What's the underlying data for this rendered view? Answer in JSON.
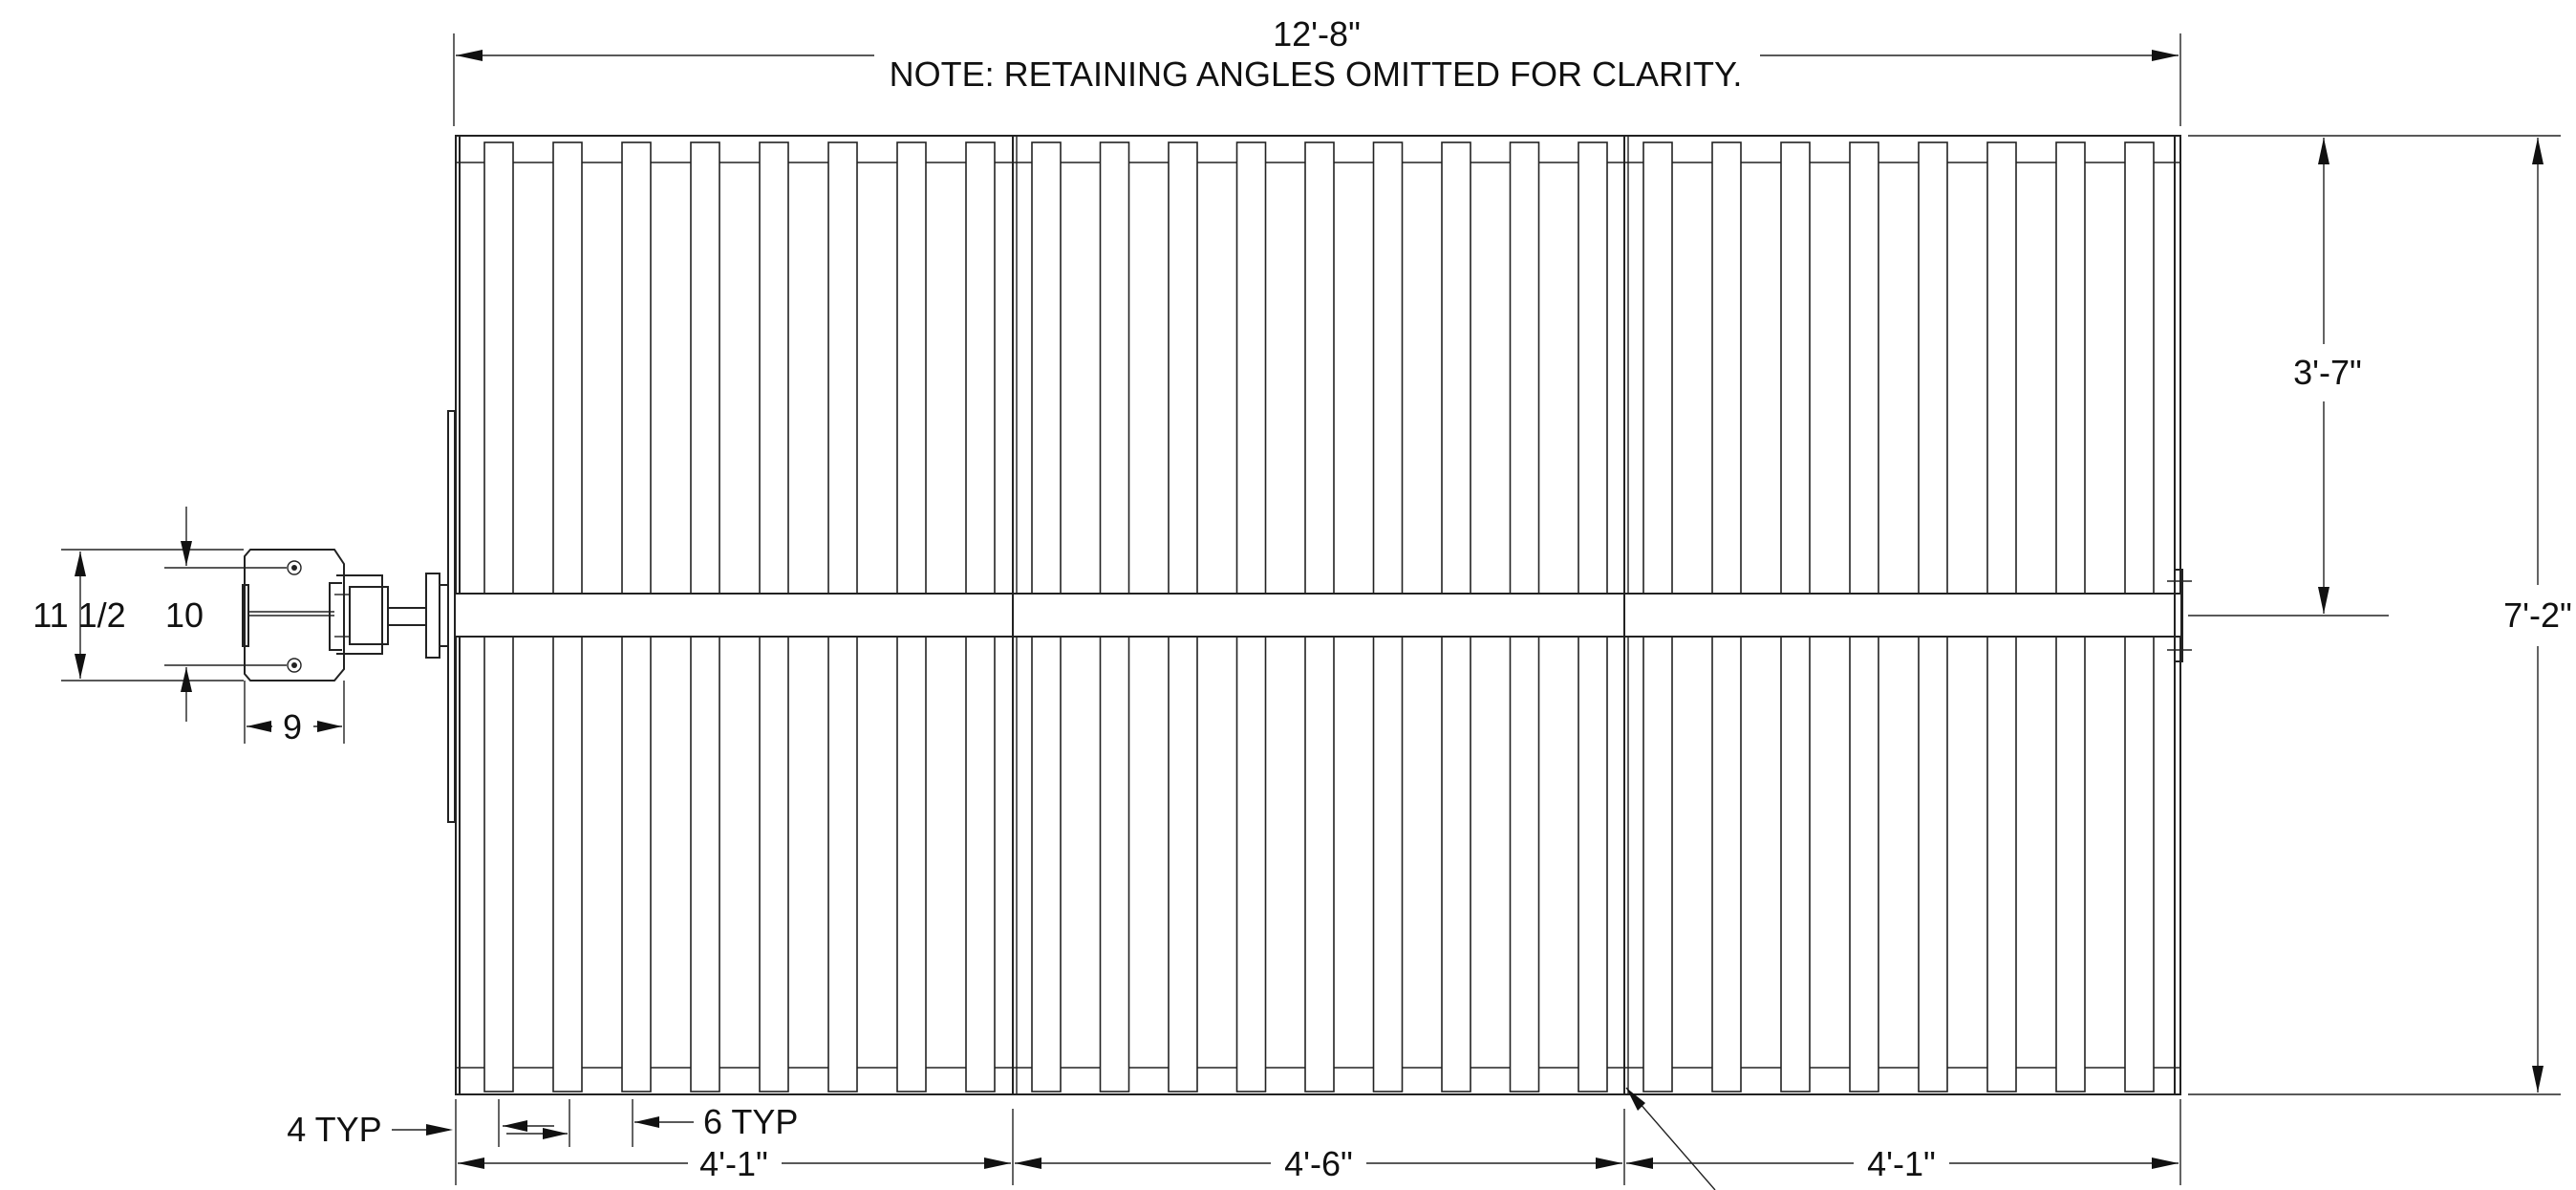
{
  "drawing": {
    "note": "NOTE: RETAINING ANGLES OMITTED FOR CLARITY.",
    "dimensions": {
      "overall_length": "12'-8\"",
      "overall_width": "7'-2\"",
      "half_width": "3'-7\"",
      "panel_left": "4'-1\"",
      "panel_middle": "4'-6\"",
      "panel_right": "4'-1\"",
      "gap_typ": "4 TYP",
      "plank_typ": "6 TYP",
      "section_height": "11 1/2",
      "section_depth": "10",
      "section_width": "9"
    }
  }
}
